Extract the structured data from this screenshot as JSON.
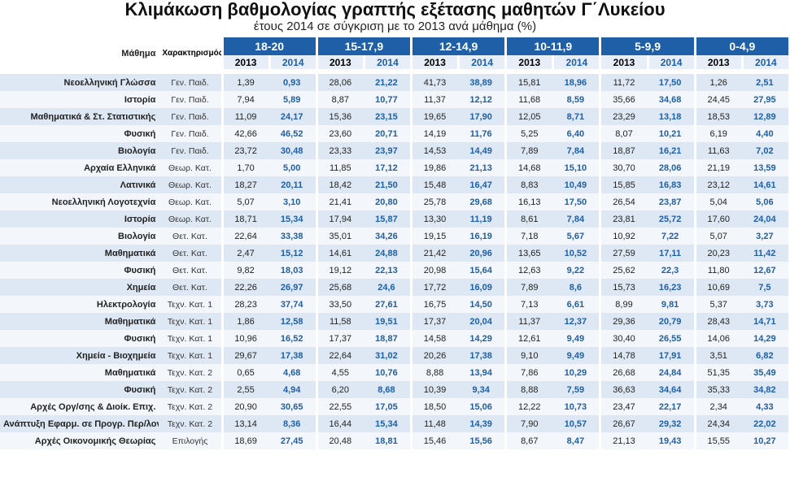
{
  "title": "Κλιμάκωση βαθμολογίας γραπτής εξέτασης μαθητών Γ΄Λυκείου",
  "subtitle": "έτους 2014 σε σύγκριση με το 2013 ανά μάθημα (%)",
  "header": {
    "subject": "Μάθημα",
    "type": "Χαρακτηρισμός μαθήματος",
    "groups": [
      "18-20",
      "15-17,9",
      "12-14,9",
      "10-11,9",
      "5-9,9",
      "0-4,9"
    ],
    "years": [
      "2013",
      "2014"
    ]
  },
  "rows": [
    {
      "subject": "Νεοελληνική Γλώσσα",
      "type": "Γεν. Παιδ.",
      "values": [
        "1,39",
        "0,93",
        "28,06",
        "21,22",
        "41,73",
        "38,89",
        "15,81",
        "18,96",
        "11,72",
        "17,50",
        "1,26",
        "2,51"
      ]
    },
    {
      "subject": "Ιστορία",
      "type": "Γεν. Παιδ.",
      "values": [
        "7,94",
        "5,89",
        "8,87",
        "10,77",
        "11,37",
        "12,12",
        "11,68",
        "8,59",
        "35,66",
        "34,68",
        "24,45",
        "27,95"
      ]
    },
    {
      "subject": "Μαθηματικά & Στ. Στατιστικής",
      "type": "Γεν. Παιδ.",
      "values": [
        "11,09",
        "24,17",
        "15,36",
        "23,15",
        "19,65",
        "17,90",
        "12,05",
        "8,71",
        "23,29",
        "13,18",
        "18,53",
        "12,89"
      ]
    },
    {
      "subject": "Φυσική",
      "type": "Γεν. Παιδ.",
      "values": [
        "42,66",
        "46,52",
        "23,60",
        "20,71",
        "14,19",
        "11,76",
        "5,25",
        "6,40",
        "8,07",
        "10,21",
        "6,19",
        "4,40"
      ]
    },
    {
      "subject": "Βιολογία",
      "type": "Γεν. Παιδ.",
      "values": [
        "23,72",
        "30,48",
        "23,33",
        "23,97",
        "14,53",
        "14,49",
        "7,89",
        "7,84",
        "18,87",
        "16,21",
        "11,63",
        "7,02"
      ]
    },
    {
      "subject": "Αρχαία Ελληνικά",
      "type": "Θεωρ. Κατ.",
      "values": [
        "1,70",
        "5,00",
        "11,85",
        "17,12",
        "19,86",
        "21,13",
        "14,68",
        "15,10",
        "30,70",
        "28,06",
        "21,19",
        "13,59"
      ]
    },
    {
      "subject": "Λατινικά",
      "type": "Θεωρ. Κατ.",
      "values": [
        "18,27",
        "20,11",
        "18,42",
        "21,50",
        "15,48",
        "16,47",
        "8,83",
        "10,49",
        "15,85",
        "16,83",
        "23,12",
        "14,61"
      ]
    },
    {
      "subject": "Νεοελληνική Λογοτεχνία",
      "type": "Θεωρ. Κατ.",
      "values": [
        "5,07",
        "3,10",
        "21,41",
        "20,80",
        "25,78",
        "29,68",
        "16,13",
        "17,50",
        "26,54",
        "23,87",
        "5,04",
        "5,06"
      ]
    },
    {
      "subject": "Ιστορία",
      "type": "Θεωρ. Κατ.",
      "values": [
        "18,71",
        "15,34",
        "17,94",
        "15,87",
        "13,30",
        "11,19",
        "8,61",
        "7,84",
        "23,81",
        "25,72",
        "17,60",
        "24,04"
      ]
    },
    {
      "subject": "Βιολογία",
      "type": "Θετ. Κατ.",
      "values": [
        "22,64",
        "33,38",
        "35,01",
        "34,26",
        "19,15",
        "16,19",
        "7,18",
        "5,67",
        "10,92",
        "7,22",
        "5,07",
        "3,27"
      ]
    },
    {
      "subject": "Μαθηματικά",
      "type": "Θετ. Κατ.",
      "values": [
        "2,47",
        "15,12",
        "14,61",
        "24,88",
        "21,42",
        "20,96",
        "13,65",
        "10,52",
        "27,59",
        "17,11",
        "20,23",
        "11,42"
      ]
    },
    {
      "subject": "Φυσική",
      "type": "Θετ. Κατ.",
      "values": [
        "9,82",
        "18,03",
        "19,12",
        "22,13",
        "20,98",
        "15,64",
        "12,63",
        "9,22",
        "25,62",
        "22,3",
        "11,80",
        "12,67"
      ]
    },
    {
      "subject": "Χημεία",
      "type": "Θετ. Κατ.",
      "values": [
        "22,26",
        "26,97",
        "25,68",
        "24,6",
        "17,72",
        "16,09",
        "7,89",
        "8,6",
        "15,73",
        "16,23",
        "10,69",
        "7,5"
      ]
    },
    {
      "subject": "Ηλεκτρολογία",
      "type": "Τεχν. Κατ. 1",
      "values": [
        "28,23",
        "37,74",
        "33,50",
        "27,61",
        "16,75",
        "14,50",
        "7,13",
        "6,61",
        "8,99",
        "9,81",
        "5,37",
        "3,73"
      ]
    },
    {
      "subject": "Μαθηματικά",
      "type": "Τεχν. Κατ. 1",
      "values": [
        "1,86",
        "12,58",
        "11,58",
        "19,51",
        "17,37",
        "20,04",
        "11,37",
        "12,37",
        "29,36",
        "20,79",
        "28,43",
        "14,71"
      ]
    },
    {
      "subject": "Φυσική",
      "type": "Τεχν. Κατ. 1",
      "values": [
        "10,96",
        "16,52",
        "17,37",
        "18,87",
        "14,58",
        "14,29",
        "12,61",
        "9,49",
        "30,40",
        "26,55",
        "14,06",
        "14,29"
      ]
    },
    {
      "subject": "Χημεία - Βιοχημεία",
      "type": "Τεχν. Κατ. 1",
      "values": [
        "29,67",
        "17,38",
        "22,64",
        "31,02",
        "20,26",
        "17,38",
        "9,10",
        "9,49",
        "14,78",
        "17,91",
        "3,51",
        "6,82"
      ]
    },
    {
      "subject": "Μαθηματικά",
      "type": "Τεχν. Κατ. 2",
      "values": [
        "0,65",
        "4,68",
        "4,55",
        "10,76",
        "8,88",
        "13,94",
        "7,86",
        "10,29",
        "26,68",
        "24,84",
        "51,35",
        "35,49"
      ]
    },
    {
      "subject": "Φυσική",
      "type": "Τεχν. Κατ. 2",
      "values": [
        "2,55",
        "4,94",
        "6,20",
        "8,68",
        "10,39",
        "9,34",
        "8,88",
        "7,59",
        "36,63",
        "34,64",
        "35,33",
        "34,82"
      ]
    },
    {
      "subject": "Αρχές Οργ/σης & Διοίκ. Επιχ.",
      "type": "Τεχν. Κατ. 2",
      "values": [
        "20,90",
        "30,65",
        "22,55",
        "17,05",
        "18,50",
        "15,06",
        "12,22",
        "10,73",
        "23,47",
        "22,17",
        "2,34",
        "4,33"
      ]
    },
    {
      "subject": "Ανάπτυξη Εφαρμ. σε Προγρ. Περ/λον",
      "type": "Τεχν. Κατ. 2",
      "values": [
        "13,14",
        "8,36",
        "16,44",
        "15,34",
        "11,48",
        "14,39",
        "7,90",
        "10,57",
        "26,67",
        "29,32",
        "24,34",
        "22,02"
      ]
    },
    {
      "subject": "Αρχές Οικονομικής Θεωρίας",
      "type": "Επιλογής",
      "values": [
        "18,69",
        "27,45",
        "20,48",
        "18,81",
        "15,46",
        "15,56",
        "8,67",
        "8,47",
        "21,13",
        "19,43",
        "15,55",
        "10,27"
      ]
    }
  ]
}
